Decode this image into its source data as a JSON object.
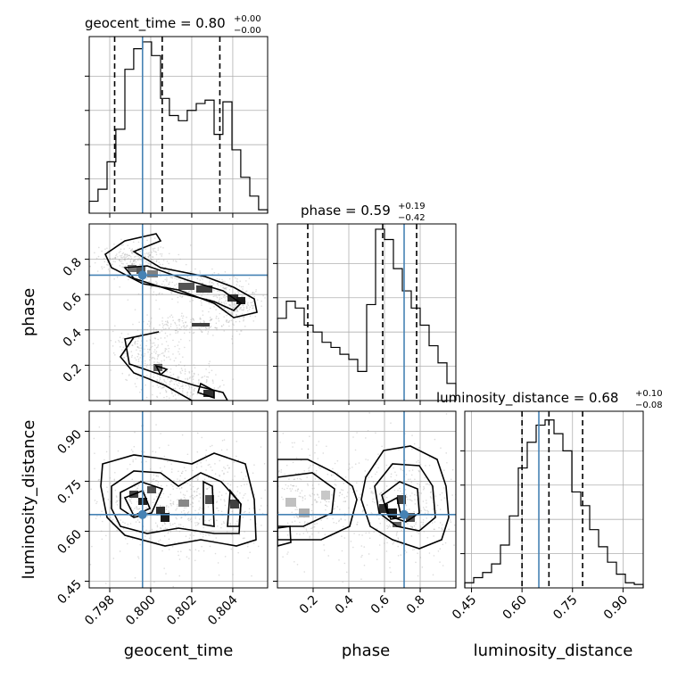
{
  "chart_data": [
    {
      "type": "histogram",
      "panel": "geocent_time",
      "title": "geocent_time = 0.80",
      "title_plus": "+0.00",
      "title_minus": "−0.00",
      "xlim": [
        0.797,
        0.8057
      ],
      "bin_edges": [
        0.797,
        0.79743,
        0.79787,
        0.7983,
        0.79874,
        0.79917,
        0.79961,
        0.80004,
        0.80048,
        0.80091,
        0.80135,
        0.80178,
        0.80222,
        0.80265,
        0.80309,
        0.80352,
        0.80396,
        0.80439,
        0.80483,
        0.80526,
        0.8057
      ],
      "heights": [
        0.07,
        0.14,
        0.3,
        0.49,
        0.84,
        0.96,
        1.0,
        0.92,
        0.67,
        0.57,
        0.54,
        0.6,
        0.64,
        0.66,
        0.46,
        0.65,
        0.37,
        0.21,
        0.1,
        0.02
      ],
      "quantiles": [
        0.79824,
        0.80056,
        0.80337
      ],
      "truth": 0.7996
    },
    {
      "type": "histogram",
      "panel": "phase",
      "title": "phase = 0.59",
      "title_plus": "+0.19",
      "title_minus": "−0.42",
      "xlim": [
        0.0,
        1.0
      ],
      "bin_edges": [
        0,
        0.05,
        0.1,
        0.15,
        0.2,
        0.25,
        0.3,
        0.35,
        0.4,
        0.45,
        0.5,
        0.55,
        0.6,
        0.65,
        0.7,
        0.75,
        0.8,
        0.85,
        0.9,
        0.95,
        1.0
      ],
      "heights": [
        0.48,
        0.58,
        0.54,
        0.44,
        0.4,
        0.34,
        0.31,
        0.27,
        0.24,
        0.17,
        0.56,
        1.0,
        0.94,
        0.77,
        0.64,
        0.54,
        0.44,
        0.32,
        0.22,
        0.1
      ],
      "quantiles": [
        0.17,
        0.59,
        0.78
      ],
      "truth": 0.71
    },
    {
      "type": "histogram",
      "panel": "luminosity_distance",
      "title": "luminosity_distance = 0.68",
      "title_plus": "+0.10",
      "title_minus": "−0.08",
      "xlim": [
        0.43,
        0.96
      ],
      "bin_edges": [
        0.43,
        0.4565,
        0.483,
        0.5095,
        0.536,
        0.5625,
        0.589,
        0.6155,
        0.642,
        0.6685,
        0.695,
        0.7215,
        0.748,
        0.7745,
        0.801,
        0.8275,
        0.854,
        0.8805,
        0.907,
        0.9335,
        0.96
      ],
      "heights": [
        0.03,
        0.06,
        0.09,
        0.14,
        0.25,
        0.42,
        0.7,
        0.85,
        0.95,
        0.98,
        0.9,
        0.8,
        0.56,
        0.48,
        0.34,
        0.24,
        0.15,
        0.08,
        0.03,
        0.02
      ],
      "quantiles": [
        0.6,
        0.68,
        0.78
      ],
      "truth": 0.65
    },
    {
      "type": "contour",
      "panel": "geocent_time vs phase",
      "xlim": [
        0.797,
        0.8057
      ],
      "ylim": [
        0.0,
        1.0
      ],
      "truth": [
        0.7996,
        0.71
      ]
    },
    {
      "type": "contour",
      "panel": "geocent_time vs luminosity_distance",
      "xlim": [
        0.797,
        0.8057
      ],
      "ylim": [
        0.43,
        0.96
      ],
      "truth": [
        0.7996,
        0.65
      ]
    },
    {
      "type": "contour",
      "panel": "phase vs luminosity_distance",
      "xlim": [
        0.0,
        1.0
      ],
      "ylim": [
        0.43,
        0.96
      ],
      "truth": [
        0.71,
        0.65
      ]
    }
  ],
  "axes": {
    "geocent_time": {
      "label": "geocent_time",
      "ticks": [
        0.798,
        0.8,
        0.802,
        0.804
      ],
      "tick_labels": [
        "0.798",
        "0.800",
        "0.802",
        "0.804"
      ]
    },
    "phase": {
      "label": "phase",
      "ticks": [
        0.2,
        0.4,
        0.6,
        0.8
      ],
      "tick_labels": [
        "0.2",
        "0.4",
        "0.6",
        "0.8"
      ]
    },
    "luminosity_distance": {
      "label": "luminosity_distance",
      "ticks": [
        0.45,
        0.6,
        0.75,
        0.9
      ],
      "tick_labels": [
        "0.45",
        "0.60",
        "0.75",
        "0.90"
      ]
    }
  },
  "colors": {
    "truth": "#4682b4",
    "line": "#000000",
    "grid": "#b0b0b0"
  },
  "grid": true
}
